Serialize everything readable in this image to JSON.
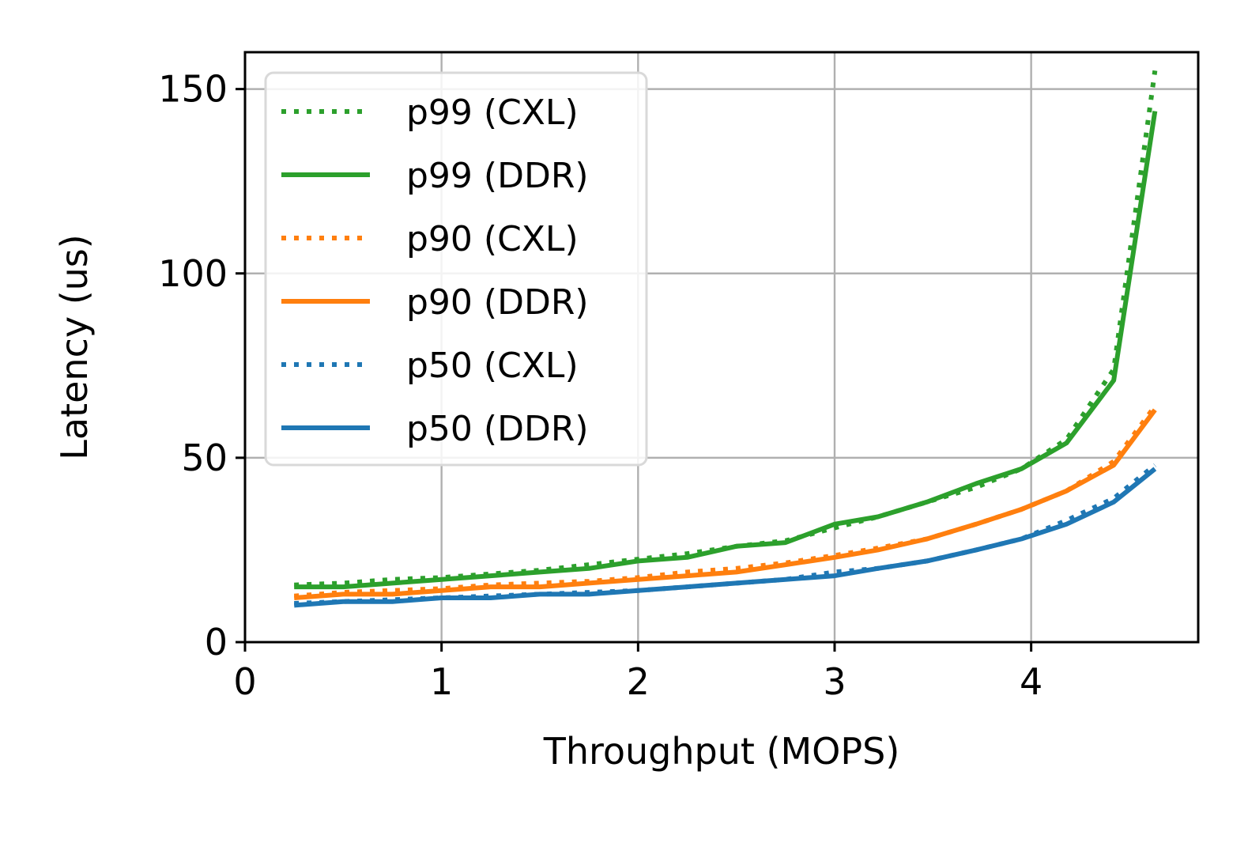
{
  "chart_data": {
    "type": "line",
    "title": "",
    "xlabel": "Throughput (MOPS)",
    "ylabel": "Latency (us)",
    "xlim": [
      0,
      4.85
    ],
    "ylim": [
      0,
      160
    ],
    "xticks": [
      0,
      1,
      2,
      3,
      4
    ],
    "yticks": [
      0,
      50,
      100,
      150
    ],
    "grid": true,
    "legend_position": "upper-left",
    "series": [
      {
        "name": "p99 (CXL)",
        "color": "#2ca02c",
        "style": "dotted",
        "x": [
          0.25,
          0.5,
          0.75,
          1.0,
          1.25,
          1.5,
          1.75,
          2.0,
          2.25,
          2.5,
          2.75,
          3.0,
          3.22,
          3.47,
          3.72,
          3.95,
          4.18,
          4.42,
          4.63
        ],
        "y": [
          15.5,
          16,
          17,
          17.5,
          18.5,
          19.5,
          21,
          22.5,
          24,
          26,
          27.5,
          31,
          34,
          38,
          42,
          47,
          55,
          74,
          155
        ]
      },
      {
        "name": "p99 (DDR)",
        "color": "#2ca02c",
        "style": "solid",
        "x": [
          0.25,
          0.5,
          0.75,
          1.0,
          1.25,
          1.5,
          1.75,
          2.0,
          2.25,
          2.5,
          2.75,
          3.0,
          3.22,
          3.47,
          3.72,
          3.95,
          4.18,
          4.42,
          4.63
        ],
        "y": [
          15,
          15,
          16,
          17,
          18,
          19,
          20,
          22,
          23,
          26,
          27,
          32,
          34,
          38,
          43,
          47,
          54,
          71,
          144
        ]
      },
      {
        "name": "p90 (CXL)",
        "color": "#ff7f0e",
        "style": "dotted",
        "x": [
          0.25,
          0.5,
          0.75,
          1.0,
          1.25,
          1.5,
          1.75,
          2.0,
          2.25,
          2.5,
          2.75,
          3.0,
          3.22,
          3.47,
          3.72,
          3.95,
          4.18,
          4.42,
          4.63
        ],
        "y": [
          12.5,
          13.5,
          14,
          14.5,
          15.5,
          16,
          16.5,
          17.5,
          19,
          20,
          21.5,
          23.5,
          25.5,
          28,
          32,
          36,
          41,
          49,
          64
        ]
      },
      {
        "name": "p90 (DDR)",
        "color": "#ff7f0e",
        "style": "solid",
        "x": [
          0.25,
          0.5,
          0.75,
          1.0,
          1.25,
          1.5,
          1.75,
          2.0,
          2.25,
          2.5,
          2.75,
          3.0,
          3.22,
          3.47,
          3.72,
          3.95,
          4.18,
          4.42,
          4.63
        ],
        "y": [
          12,
          13,
          13,
          14,
          15,
          15,
          16,
          17,
          18,
          19,
          21,
          23,
          25,
          28,
          32,
          36,
          41,
          48,
          63
        ]
      },
      {
        "name": "p50 (CXL)",
        "color": "#1f77b4",
        "style": "dotted",
        "x": [
          0.25,
          0.5,
          0.75,
          1.0,
          1.25,
          1.5,
          1.75,
          2.0,
          2.25,
          2.5,
          2.75,
          3.0,
          3.22,
          3.47,
          3.72,
          3.95,
          4.18,
          4.42,
          4.63
        ],
        "y": [
          10.5,
          11,
          11.5,
          12,
          12.5,
          13,
          13.5,
          14,
          15,
          16,
          17,
          19,
          20,
          22,
          25,
          28,
          33,
          39,
          48
        ]
      },
      {
        "name": "p50 (DDR)",
        "color": "#1f77b4",
        "style": "solid",
        "x": [
          0.25,
          0.5,
          0.75,
          1.0,
          1.25,
          1.5,
          1.75,
          2.0,
          2.25,
          2.5,
          2.75,
          3.0,
          3.22,
          3.47,
          3.72,
          3.95,
          4.18,
          4.42,
          4.63
        ],
        "y": [
          10,
          11,
          11,
          12,
          12,
          13,
          13,
          14,
          15,
          16,
          17,
          18,
          20,
          22,
          25,
          28,
          32,
          38,
          47
        ]
      }
    ]
  }
}
